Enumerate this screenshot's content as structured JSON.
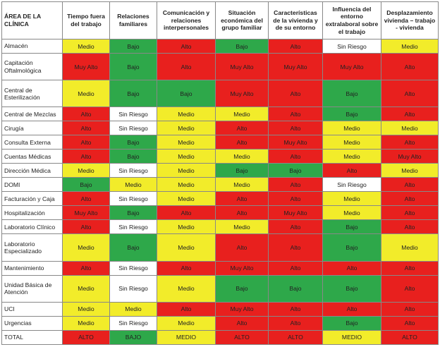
{
  "table": {
    "columns": [
      "ÁREA DE LA CLÍNICA",
      "Tiempo fuera del trabajo",
      "Relaciones familiares",
      "Comunicación y relaciones interpersonales",
      "Situación económica del grupo familiar",
      "Características de la vivienda y de su entorno",
      "Influencia del entorno extralaboral sobre el trabajo",
      "Desplazamiento vivienda – trabajo - vivienda"
    ],
    "level_colors": {
      "Muy Alto": "#e8201e",
      "Alto": "#e8201e",
      "Medio": "#f2ec2a",
      "Bajo": "#2ea84a",
      "Sin Riesgo": "#ffffff"
    },
    "rows": [
      {
        "area": "Almacén",
        "cells": [
          "Medio",
          "Bajo",
          "Alto",
          "Bajo",
          "Alto",
          "Sin Riesgo",
          "Medio"
        ]
      },
      {
        "area": "Capitación Oftalmológica",
        "cells": [
          "Muy Alto",
          "Bajo",
          "Alto",
          "Muy Alto",
          "Muy Alto",
          "Muy Alto",
          "Alto"
        ]
      },
      {
        "area": "Central de Esterilización",
        "cells": [
          "Medio",
          "Bajo",
          "Bajo",
          "Muy Alto",
          "Alto",
          "Bajo",
          "Alto"
        ]
      },
      {
        "area": "Central de Mezclas",
        "cells": [
          "Alto",
          "Sin Riesgo",
          "Medio",
          "Medio",
          "Alto",
          "Bajo",
          "Alto"
        ]
      },
      {
        "area": "Cirugía",
        "cells": [
          "Alto",
          "Sin Riesgo",
          "Medio",
          "Alto",
          "Alto",
          "Medio",
          "Medio"
        ]
      },
      {
        "area": "Consulta Externa",
        "cells": [
          "Alto",
          "Bajo",
          "Medio",
          "Alto",
          "Muy Alto",
          "Medio",
          "Alto"
        ]
      },
      {
        "area": "Cuentas Médicas",
        "cells": [
          "Alto",
          "Bajo",
          "Medio",
          "Medio",
          "Alto",
          "Medio",
          "Muy Alto"
        ]
      },
      {
        "area": "Dirección Médica",
        "cells": [
          "Medio",
          "Sin Riesgo",
          "Medio",
          "Bajo",
          "Bajo",
          "Alto",
          "Medio"
        ]
      },
      {
        "area": "DOMI",
        "cells": [
          "Bajo",
          "Medio",
          "Medio",
          "Medio",
          "Alto",
          "Sin Riesgo",
          "Alto"
        ]
      },
      {
        "area": "Facturación y Caja",
        "cells": [
          "Alto",
          "Sin Riesgo",
          "Medio",
          "Alto",
          "Alto",
          "Medio",
          "Alto"
        ]
      },
      {
        "area": "Hospitalización",
        "cells": [
          "Muy Alto",
          "Bajo",
          "Alto",
          "Alto",
          "Muy Alto",
          "Medio",
          "Alto"
        ]
      },
      {
        "area": "Laboratorio Clínico",
        "cells": [
          "Alto",
          "Sin Riesgo",
          "Medio",
          "Medio",
          "Alto",
          "Bajo",
          "Alto"
        ]
      },
      {
        "area": "Laboratorio Especializado",
        "cells": [
          "Medio",
          "Bajo",
          "Medio",
          "Alto",
          "Alto",
          "Bajo",
          "Medio"
        ]
      },
      {
        "area": "Mantenimiento",
        "cells": [
          "Alto",
          "Sin Riesgo",
          "Alto",
          "Muy Alto",
          "Alto",
          "Alto",
          "Alto"
        ]
      },
      {
        "area": "Unidad Básica de Atención",
        "cells": [
          "Medio",
          "Sin Riesgo",
          "Medio",
          "Bajo",
          "Bajo",
          "Bajo",
          "Alto"
        ]
      },
      {
        "area": "UCI",
        "cells": [
          "Medio",
          "Medio",
          "Alto",
          "Muy Alto",
          "Alto",
          "Alto",
          "Alto"
        ]
      },
      {
        "area": "Urgencias",
        "cells": [
          "Medio",
          "Sin Riesgo",
          "Medio",
          "Alto",
          "Alto",
          "Bajo",
          "Alto"
        ]
      }
    ],
    "total": {
      "label": "TOTAL",
      "cells": [
        "ALTO",
        "BAJO",
        "MEDIO",
        "ALTO",
        "ALTO",
        "MEDIO",
        "ALTO"
      ]
    }
  }
}
